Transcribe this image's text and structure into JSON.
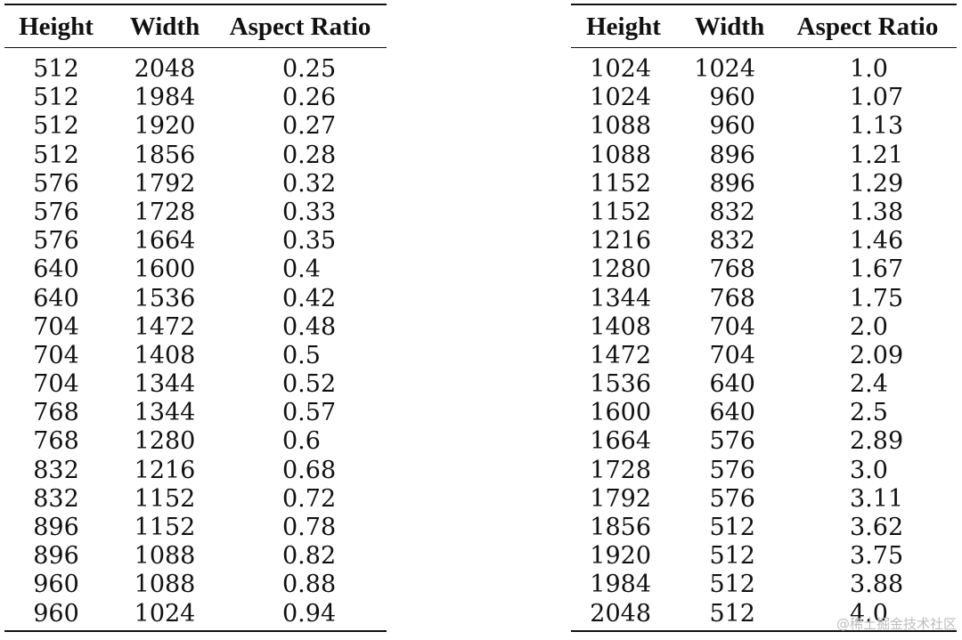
{
  "headers": [
    "Height",
    "Width",
    "Aspect Ratio"
  ],
  "left_table": [
    [
      "512",
      "2048",
      "0.25"
    ],
    [
      "512",
      "1984",
      "0.26"
    ],
    [
      "512",
      "1920",
      "0.27"
    ],
    [
      "512",
      "1856",
      "0.28"
    ],
    [
      "576",
      "1792",
      "0.32"
    ],
    [
      "576",
      "1728",
      "0.33"
    ],
    [
      "576",
      "1664",
      "0.35"
    ],
    [
      "640",
      "1600",
      "0.4"
    ],
    [
      "640",
      "1536",
      "0.42"
    ],
    [
      "704",
      "1472",
      "0.48"
    ],
    [
      "704",
      "1408",
      "0.5"
    ],
    [
      "704",
      "1344",
      "0.52"
    ],
    [
      "768",
      "1344",
      "0.57"
    ],
    [
      "768",
      "1280",
      "0.6"
    ],
    [
      "832",
      "1216",
      "0.68"
    ],
    [
      "832",
      "1152",
      "0.72"
    ],
    [
      "896",
      "1152",
      "0.78"
    ],
    [
      "896",
      "1088",
      "0.82"
    ],
    [
      "960",
      "1088",
      "0.88"
    ],
    [
      "960",
      "1024",
      "0.94"
    ]
  ],
  "right_table": [
    [
      "1024",
      "1024",
      "1.0"
    ],
    [
      "1024",
      "960",
      "1.07"
    ],
    [
      "1088",
      "960",
      "1.13"
    ],
    [
      "1088",
      "896",
      "1.21"
    ],
    [
      "1152",
      "896",
      "1.29"
    ],
    [
      "1152",
      "832",
      "1.38"
    ],
    [
      "1216",
      "832",
      "1.46"
    ],
    [
      "1280",
      "768",
      "1.67"
    ],
    [
      "1344",
      "768",
      "1.75"
    ],
    [
      "1408",
      "704",
      "2.0"
    ],
    [
      "1472",
      "704",
      "2.09"
    ],
    [
      "1536",
      "640",
      "2.4"
    ],
    [
      "1600",
      "640",
      "2.5"
    ],
    [
      "1664",
      "576",
      "2.89"
    ],
    [
      "1728",
      "576",
      "3.0"
    ],
    [
      "1792",
      "576",
      "3.11"
    ],
    [
      "1856",
      "512",
      "3.62"
    ],
    [
      "1920",
      "512",
      "3.75"
    ],
    [
      "1984",
      "512",
      "3.88"
    ],
    [
      "2048",
      "512",
      "4.0"
    ]
  ],
  "watermark": "@稀土掘金技术社区"
}
